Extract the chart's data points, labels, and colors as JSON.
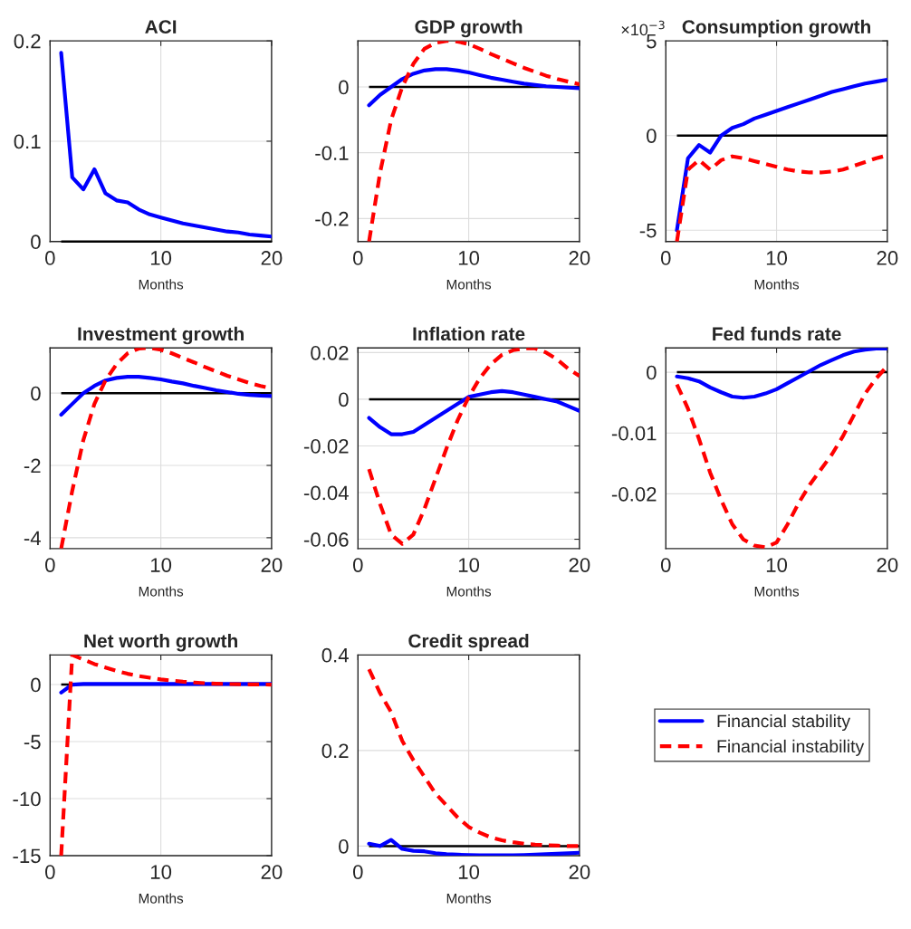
{
  "chart_data": [
    {
      "type": "line",
      "title": "ACI",
      "xlabel": "Months",
      "x": [
        1,
        2,
        3,
        4,
        5,
        6,
        7,
        8,
        9,
        10,
        11,
        12,
        13,
        14,
        15,
        16,
        17,
        18,
        19,
        20
      ],
      "xlim": [
        0,
        20
      ],
      "xticks": [
        0,
        10,
        20
      ],
      "ylim": [
        0,
        0.2
      ],
      "yticks": [
        0,
        0.1,
        0.2
      ],
      "grid": true,
      "ref_lines": [
        {
          "axis": "y",
          "value": 0,
          "color": "#000000"
        }
      ],
      "series": [
        {
          "color": "#0000ff",
          "line_style": "solid",
          "values": [
            0.188,
            0.064,
            0.052,
            0.072,
            0.048,
            0.041,
            0.039,
            0.032,
            0.027,
            0.024,
            0.021,
            0.018,
            0.016,
            0.014,
            0.012,
            0.01,
            0.009,
            0.007,
            0.006,
            0.005
          ]
        }
      ]
    },
    {
      "type": "line",
      "title": "GDP growth",
      "xlabel": "Months",
      "x": [
        1,
        2,
        3,
        4,
        5,
        6,
        7,
        8,
        9,
        10,
        11,
        12,
        13,
        14,
        15,
        16,
        17,
        18,
        19,
        20
      ],
      "xlim": [
        0,
        20
      ],
      "xticks": [
        0,
        10,
        20
      ],
      "ylim": [
        -0.235,
        0.07
      ],
      "yticks": [
        -0.2,
        -0.1,
        0
      ],
      "grid": true,
      "ref_lines": [
        {
          "axis": "y",
          "value": 0,
          "color": "#000000"
        }
      ],
      "series": [
        {
          "color": "#0000ff",
          "line_style": "solid",
          "values": [
            -0.028,
            -0.012,
            0.0,
            0.012,
            0.02,
            0.025,
            0.027,
            0.027,
            0.025,
            0.022,
            0.018,
            0.014,
            0.011,
            0.008,
            0.005,
            0.003,
            0.001,
            0.0,
            -0.001,
            -0.002
          ]
        },
        {
          "color": "#ff0000",
          "line_style": "dashed",
          "values": [
            -0.235,
            -0.13,
            -0.05,
            0.0,
            0.035,
            0.058,
            0.067,
            0.07,
            0.069,
            0.065,
            0.058,
            0.05,
            0.043,
            0.036,
            0.029,
            0.023,
            0.017,
            0.012,
            0.008,
            0.004
          ]
        }
      ]
    },
    {
      "type": "line",
      "title": "Consumption growth",
      "xlabel": "Months",
      "annotations": [
        "×10$^{−3}$"
      ],
      "x": [
        1,
        2,
        3,
        4,
        5,
        6,
        7,
        8,
        9,
        10,
        11,
        12,
        13,
        14,
        15,
        16,
        17,
        18,
        19,
        20
      ],
      "xlim": [
        0,
        20
      ],
      "xticks": [
        0,
        10,
        20
      ],
      "ylim": [
        -5.6,
        5
      ],
      "yticks": [
        -5,
        0,
        5
      ],
      "grid": true,
      "ref_lines": [
        {
          "axis": "y",
          "value": 0,
          "color": "#000000"
        }
      ],
      "series": [
        {
          "color": "#0000ff",
          "line_style": "solid",
          "values": [
            -5.0,
            -1.2,
            -0.5,
            -0.9,
            0.0,
            0.4,
            0.6,
            0.9,
            1.1,
            1.3,
            1.5,
            1.7,
            1.9,
            2.1,
            2.3,
            2.45,
            2.6,
            2.75,
            2.85,
            2.95
          ]
        },
        {
          "color": "#ff0000",
          "line_style": "dashed",
          "values": [
            -5.6,
            -1.8,
            -1.3,
            -1.8,
            -1.3,
            -1.1,
            -1.2,
            -1.35,
            -1.5,
            -1.65,
            -1.8,
            -1.9,
            -1.95,
            -1.95,
            -1.9,
            -1.8,
            -1.6,
            -1.4,
            -1.2,
            -1.05
          ]
        }
      ]
    },
    {
      "type": "line",
      "title": "Investment growth",
      "xlabel": "Months",
      "x": [
        1,
        2,
        3,
        4,
        5,
        6,
        7,
        8,
        9,
        10,
        11,
        12,
        13,
        14,
        15,
        16,
        17,
        18,
        19,
        20
      ],
      "xlim": [
        0,
        20
      ],
      "xticks": [
        0,
        10,
        20
      ],
      "ylim": [
        -4.3,
        1.25
      ],
      "yticks": [
        -4,
        -2,
        0
      ],
      "grid": true,
      "ref_lines": [
        {
          "axis": "y",
          "value": 0,
          "color": "#000000"
        }
      ],
      "series": [
        {
          "color": "#0000ff",
          "line_style": "solid",
          "values": [
            -0.6,
            -0.3,
            0.0,
            0.2,
            0.35,
            0.42,
            0.45,
            0.45,
            0.42,
            0.38,
            0.32,
            0.27,
            0.2,
            0.14,
            0.08,
            0.03,
            -0.02,
            -0.05,
            -0.07,
            -0.08
          ]
        },
        {
          "color": "#ff0000",
          "line_style": "dashed",
          "values": [
            -4.3,
            -2.7,
            -1.3,
            -0.3,
            0.35,
            0.8,
            1.1,
            1.23,
            1.25,
            1.2,
            1.1,
            0.97,
            0.85,
            0.72,
            0.6,
            0.48,
            0.38,
            0.28,
            0.2,
            0.13
          ]
        }
      ]
    },
    {
      "type": "line",
      "title": "Inflation rate",
      "xlabel": "Months",
      "x": [
        1,
        2,
        3,
        4,
        5,
        6,
        7,
        8,
        9,
        10,
        11,
        12,
        13,
        14,
        15,
        16,
        17,
        18,
        19,
        20
      ],
      "xlim": [
        0,
        20
      ],
      "xticks": [
        0,
        10,
        20
      ],
      "ylim": [
        -0.064,
        0.022
      ],
      "yticks": [
        -0.06,
        -0.04,
        -0.02,
        0,
        0.02
      ],
      "grid": true,
      "ref_lines": [
        {
          "axis": "y",
          "value": 0,
          "color": "#000000"
        }
      ],
      "series": [
        {
          "color": "#0000ff",
          "line_style": "solid",
          "values": [
            -0.008,
            -0.012,
            -0.015,
            -0.015,
            -0.014,
            -0.011,
            -0.008,
            -0.005,
            -0.002,
            0.001,
            0.002,
            0.003,
            0.0035,
            0.003,
            0.002,
            0.001,
            0.0,
            -0.001,
            -0.003,
            -0.005
          ]
        },
        {
          "color": "#ff0000",
          "line_style": "dashed",
          "values": [
            -0.03,
            -0.045,
            -0.058,
            -0.062,
            -0.058,
            -0.047,
            -0.034,
            -0.021,
            -0.009,
            0.001,
            0.009,
            0.015,
            0.019,
            0.021,
            0.0218,
            0.0218,
            0.02,
            0.017,
            0.013,
            0.01
          ]
        }
      ]
    },
    {
      "type": "line",
      "title": "Fed funds rate",
      "xlabel": "Months",
      "x": [
        1,
        2,
        3,
        4,
        5,
        6,
        7,
        8,
        9,
        10,
        11,
        12,
        13,
        14,
        15,
        16,
        17,
        18,
        19,
        20
      ],
      "xlim": [
        0,
        20
      ],
      "xticks": [
        0,
        10,
        20
      ],
      "ylim": [
        -0.029,
        0.004
      ],
      "yticks": [
        -0.02,
        -0.01,
        0
      ],
      "grid": true,
      "ref_lines": [
        {
          "axis": "y",
          "value": 0,
          "color": "#000000"
        }
      ],
      "series": [
        {
          "color": "#0000ff",
          "line_style": "solid",
          "values": [
            -0.0007,
            -0.001,
            -0.0015,
            -0.0025,
            -0.0033,
            -0.004,
            -0.0042,
            -0.004,
            -0.0035,
            -0.0028,
            -0.0018,
            -0.0008,
            0.0002,
            0.0012,
            0.002,
            0.0028,
            0.0034,
            0.0037,
            0.0039,
            0.0039
          ]
        },
        {
          "color": "#ff0000",
          "line_style": "dashed",
          "values": [
            -0.002,
            -0.006,
            -0.011,
            -0.0165,
            -0.021,
            -0.025,
            -0.0275,
            -0.0285,
            -0.0288,
            -0.028,
            -0.025,
            -0.0215,
            -0.0185,
            -0.016,
            -0.0135,
            -0.0105,
            -0.007,
            -0.0035,
            -0.001,
            0.001
          ]
        }
      ]
    },
    {
      "type": "line",
      "title": "Net worth growth",
      "xlabel": "Months",
      "x": [
        1,
        2,
        3,
        4,
        5,
        6,
        7,
        8,
        9,
        10,
        11,
        12,
        13,
        14,
        15,
        16,
        17,
        18,
        19,
        20
      ],
      "xlim": [
        0,
        20
      ],
      "xticks": [
        0,
        10,
        20
      ],
      "ylim": [
        -15,
        2.6
      ],
      "yticks": [
        -15,
        -10,
        -5,
        0
      ],
      "grid": true,
      "ref_lines": [
        {
          "axis": "y",
          "value": 0,
          "color": "#000000"
        }
      ],
      "series": [
        {
          "color": "#0000ff",
          "line_style": "solid",
          "values": [
            -0.7,
            0.0,
            0.05,
            0.05,
            0.05,
            0.05,
            0.05,
            0.05,
            0.05,
            0.05,
            0.05,
            0.05,
            0.05,
            0.05,
            0.05,
            0.05,
            0.05,
            0.05,
            0.05,
            0.05
          ]
        },
        {
          "color": "#ff0000",
          "line_style": "dashed",
          "values": [
            -15,
            2.6,
            2.2,
            1.8,
            1.5,
            1.2,
            0.95,
            0.75,
            0.6,
            0.45,
            0.35,
            0.25,
            0.18,
            0.12,
            0.08,
            0.05,
            0.03,
            0.02,
            0.01,
            0.0
          ]
        }
      ]
    },
    {
      "type": "line",
      "title": "Credit spread",
      "xlabel": "Months",
      "legend": "right",
      "x": [
        1,
        2,
        3,
        4,
        5,
        6,
        7,
        8,
        9,
        10,
        11,
        12,
        13,
        14,
        15,
        16,
        17,
        18,
        19,
        20
      ],
      "xlim": [
        0,
        20
      ],
      "xticks": [
        0,
        10,
        20
      ],
      "ylim": [
        -0.02,
        0.4
      ],
      "yticks": [
        0,
        0.2,
        0.4
      ],
      "grid": true,
      "ref_lines": [
        {
          "axis": "y",
          "value": 0,
          "color": "#000000"
        }
      ],
      "series": [
        {
          "name": "Financial stability",
          "color": "#0000ff",
          "line_style": "solid",
          "values": [
            0.005,
            0.0,
            0.013,
            -0.006,
            -0.01,
            -0.011,
            -0.015,
            -0.017,
            -0.018,
            -0.019,
            -0.0195,
            -0.0195,
            -0.0195,
            -0.0195,
            -0.019,
            -0.018,
            -0.017,
            -0.016,
            -0.015,
            -0.014
          ]
        },
        {
          "name": "Financial instability",
          "color": "#ff0000",
          "line_style": "dashed",
          "values": [
            0.37,
            0.32,
            0.28,
            0.22,
            0.18,
            0.145,
            0.11,
            0.085,
            0.06,
            0.04,
            0.028,
            0.018,
            0.012,
            0.008,
            0.005,
            0.003,
            0.002,
            0.001,
            0.0,
            0.0
          ]
        }
      ]
    }
  ]
}
